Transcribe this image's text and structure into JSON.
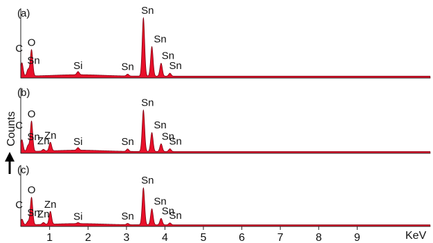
{
  "chart_data": {
    "type": "area",
    "xlabel": "KeV",
    "ylabel": "Counts",
    "xlim": [
      0.25,
      10.9
    ],
    "xticks": [
      1,
      2,
      3,
      4,
      5,
      6,
      7,
      8,
      9
    ],
    "fill_color": "#e8102a",
    "edge_color": "#7a0010",
    "panels": [
      {
        "label": "(a)",
        "baseline": 1.0,
        "peaks": [
          {
            "x": 0.28,
            "y": 8.2
          },
          {
            "x": 0.53,
            "y": 15.2
          },
          {
            "x": 0.44,
            "y": 4.6
          },
          {
            "x": 1.74,
            "y": 2.7
          },
          {
            "x": 3.03,
            "y": 2.0
          },
          {
            "x": 3.44,
            "y": 32.5
          },
          {
            "x": 3.66,
            "y": 17.0
          },
          {
            "x": 3.9,
            "y": 8.0
          },
          {
            "x": 4.13,
            "y": 2.6
          }
        ],
        "annotations": [
          {
            "text": "Sn",
            "x": 3.44
          },
          {
            "text": "Sn",
            "x": 3.66
          },
          {
            "text": "Sn",
            "x": 3.9
          },
          {
            "text": "Sn",
            "x": 4.13
          },
          {
            "text": "Sn",
            "x": 3.03
          },
          {
            "text": "Si",
            "x": 1.74
          },
          {
            "text": "O",
            "x": 0.53
          },
          {
            "text": "C",
            "x": 0.28
          },
          {
            "text": "Sn",
            "x": 0.44
          }
        ]
      },
      {
        "label": "(b)",
        "baseline": 1.0,
        "peaks": [
          {
            "x": 0.28,
            "y": 7.8
          },
          {
            "x": 0.53,
            "y": 18.5
          },
          {
            "x": 0.44,
            "y": 4.4
          },
          {
            "x": 1.02,
            "y": 6.0
          },
          {
            "x": 0.84,
            "y": 2.0
          },
          {
            "x": 1.74,
            "y": 2.5
          },
          {
            "x": 3.03,
            "y": 2.4
          },
          {
            "x": 3.44,
            "y": 25.0
          },
          {
            "x": 3.66,
            "y": 12.0
          },
          {
            "x": 3.9,
            "y": 5.5
          },
          {
            "x": 4.13,
            "y": 2.6
          }
        ],
        "annotations": [
          {
            "text": "O",
            "x": 0.53
          },
          {
            "text": "C",
            "x": 0.28
          },
          {
            "text": "Sn",
            "x": 0.44
          },
          {
            "text": "Zn",
            "x": 1.02
          },
          {
            "text": "Zn",
            "x": 0.84
          },
          {
            "text": "Si",
            "x": 1.74
          },
          {
            "text": "Sn",
            "x": 3.03
          },
          {
            "text": "Sn",
            "x": 3.44
          },
          {
            "text": "Sn",
            "x": 3.66
          },
          {
            "text": "Sn",
            "x": 3.9
          },
          {
            "text": "Sn",
            "x": 4.13
          }
        ]
      },
      {
        "label": "(c)",
        "baseline": 1.0,
        "peaks": [
          {
            "x": 0.28,
            "y": 4.5
          },
          {
            "x": 0.53,
            "y": 18.0
          },
          {
            "x": 0.44,
            "y": 3.0
          },
          {
            "x": 1.02,
            "y": 9.0
          },
          {
            "x": 0.84,
            "y": 2.2
          },
          {
            "x": 1.74,
            "y": 1.6
          },
          {
            "x": 3.03,
            "y": 1.8
          },
          {
            "x": 3.44,
            "y": 24.0
          },
          {
            "x": 3.66,
            "y": 11.0
          },
          {
            "x": 3.9,
            "y": 5.0
          },
          {
            "x": 4.13,
            "y": 2.2
          }
        ],
        "annotations": [
          {
            "text": "O",
            "x": 0.53
          },
          {
            "text": "Zn",
            "x": 1.02
          },
          {
            "text": "C",
            "x": 0.28
          },
          {
            "text": "Sn",
            "x": 0.44
          },
          {
            "text": "Zn",
            "x": 0.84
          },
          {
            "text": "Si",
            "x": 1.74
          },
          {
            "text": "Sn",
            "x": 3.03
          },
          {
            "text": "Sn",
            "x": 3.44
          },
          {
            "text": "Sn",
            "x": 3.66
          },
          {
            "text": "Sn",
            "x": 3.9
          },
          {
            "text": "Sn",
            "x": 4.13
          }
        ]
      }
    ]
  }
}
